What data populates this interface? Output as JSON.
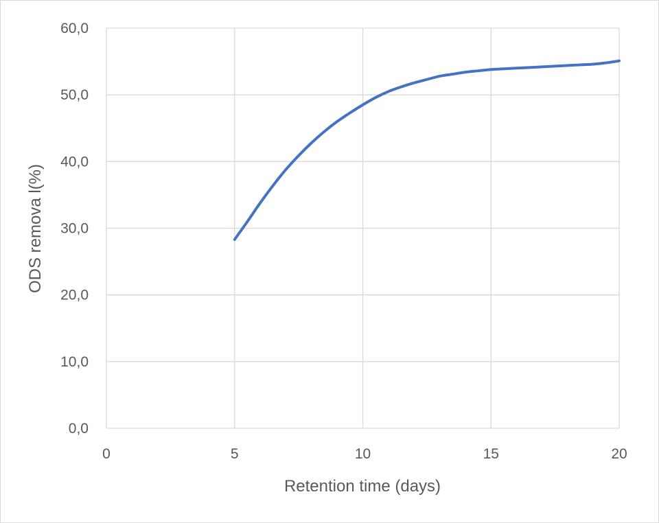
{
  "chart_data": {
    "type": "line",
    "title": "",
    "xlabel": "Retention time (days)",
    "ylabel": "ODS remova  l(%)",
    "xlim": [
      0,
      20
    ],
    "ylim": [
      0,
      60
    ],
    "x_ticks": [
      0,
      5,
      10,
      15,
      20
    ],
    "y_ticks": [
      0,
      10,
      20,
      30,
      40,
      50,
      60
    ],
    "x_tick_labels": [
      "0",
      "5",
      "10",
      "15",
      "20"
    ],
    "y_tick_labels": [
      "0,0",
      "10,0",
      "20,0",
      "30,0",
      "40,0",
      "50,0",
      "60,0"
    ],
    "grid": true,
    "legend": "none",
    "series": [
      {
        "color": "#4472c4",
        "x": [
          5,
          5.5,
          6,
          6.5,
          7,
          7.5,
          8,
          8.5,
          9,
          9.5,
          10,
          10.5,
          11,
          11.5,
          12,
          12.5,
          13,
          13.5,
          14,
          14.5,
          15,
          15.5,
          16,
          16.5,
          17,
          17.5,
          18,
          18.5,
          19,
          19.5,
          20
        ],
        "values": [
          28.3,
          31.0,
          33.8,
          36.4,
          38.8,
          40.9,
          42.8,
          44.5,
          46.0,
          47.3,
          48.5,
          49.6,
          50.5,
          51.2,
          51.8,
          52.3,
          52.8,
          53.1,
          53.4,
          53.6,
          53.8,
          53.9,
          54.0,
          54.1,
          54.2,
          54.3,
          54.4,
          54.5,
          54.6,
          54.8,
          55.1
        ]
      }
    ]
  }
}
